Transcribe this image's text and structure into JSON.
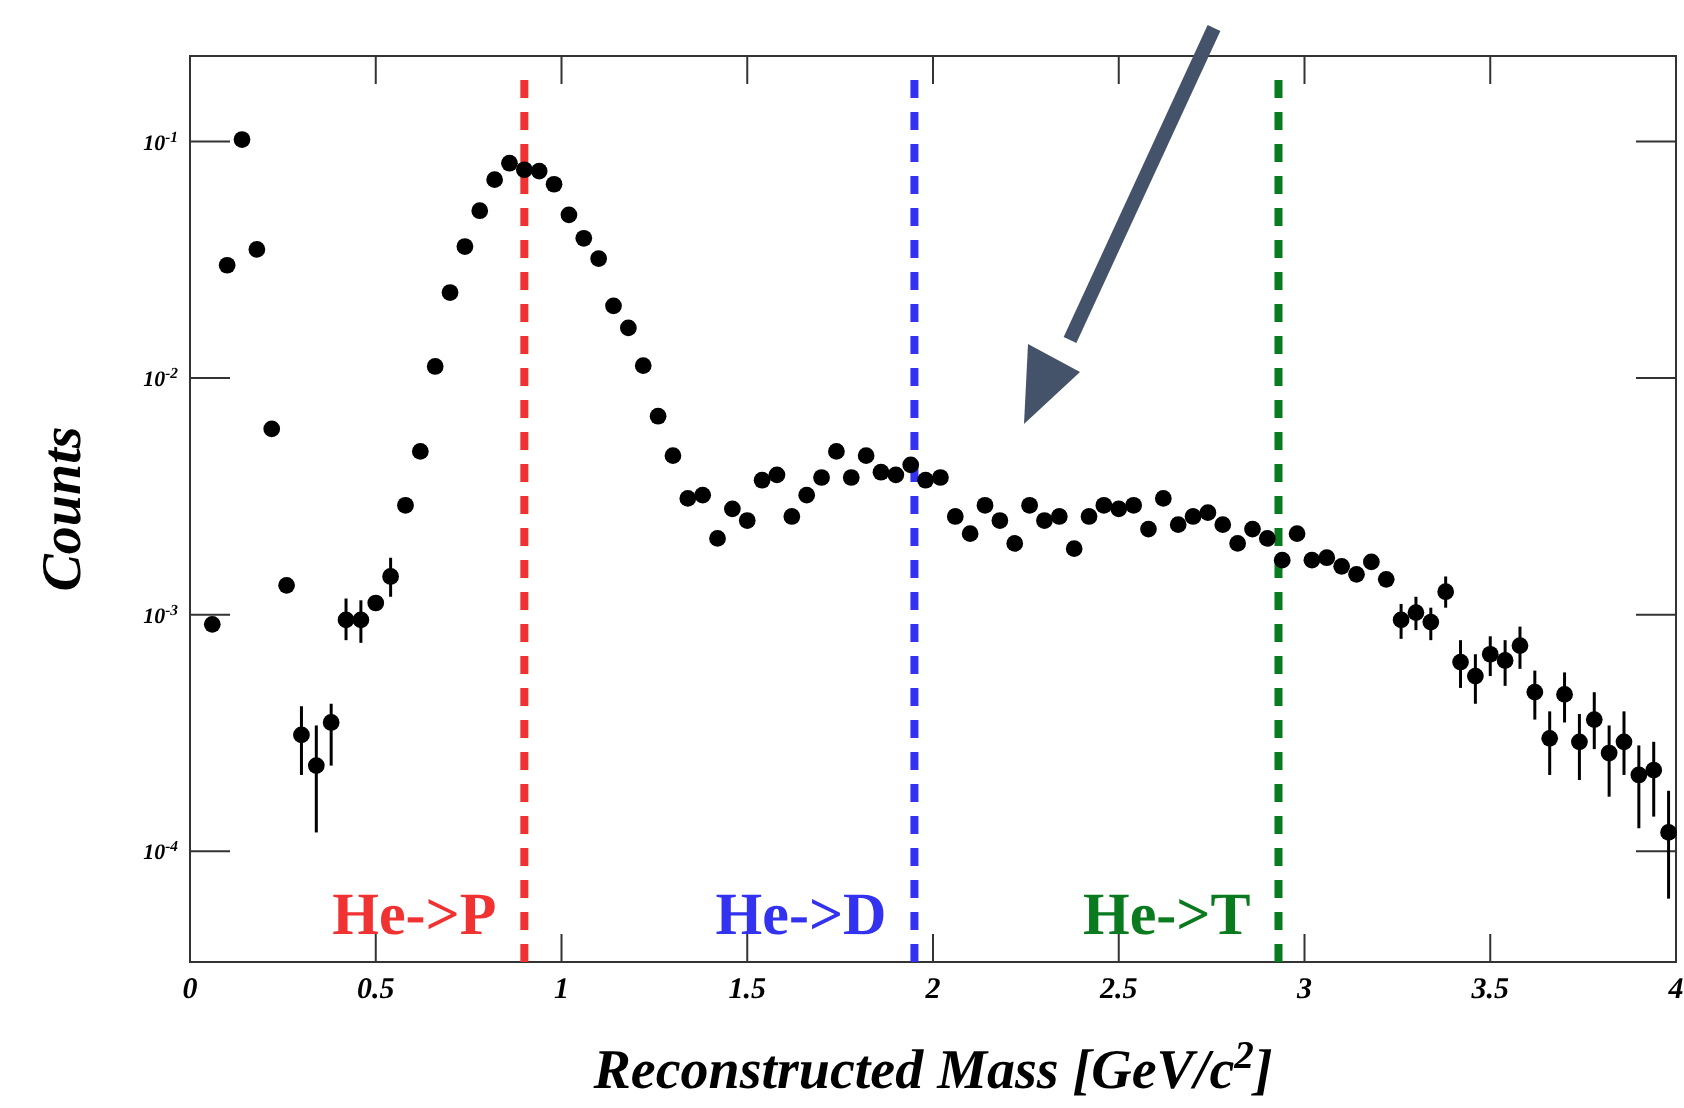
{
  "chart_data": {
    "type": "scatter",
    "xlabel": "Reconstructed Mass [GeV/c$^{2}$]",
    "ylabel": "Counts",
    "log": "y",
    "marker": "circle",
    "grid": false,
    "xlim": [
      0,
      4
    ],
    "xticks": [
      0,
      0.5,
      1,
      1.5,
      2,
      2.5,
      3,
      3.5,
      4
    ],
    "ylim": [
      3.4e-05,
      0.23
    ],
    "yticks": [
      {
        "value": 0.0001,
        "label": "10$^{-4}$"
      },
      {
        "value": 0.001,
        "label": "10$^{-3}$"
      },
      {
        "value": 0.01,
        "label": "10$^{-2}$"
      },
      {
        "value": 0.1,
        "label": "10$^{-1}$"
      }
    ],
    "ref_lines": [
      {
        "axis": "x",
        "value": 0.9,
        "label": "He->P",
        "color": "#f03232",
        "line_style": "dashed"
      },
      {
        "axis": "x",
        "value": 1.95,
        "label": "He->D",
        "color": "#3232f0",
        "line_style": "dashed"
      },
      {
        "axis": "x",
        "value": 2.93,
        "label": "He->T",
        "color": "#0a7a1e",
        "line_style": "dashed"
      }
    ],
    "series": [
      {
        "color": "#000000",
        "x": [
          0.06,
          0.1,
          0.14,
          0.18,
          0.22,
          0.26,
          0.3,
          0.34,
          0.38,
          0.42,
          0.46,
          0.5,
          0.54,
          0.58,
          0.62,
          0.66,
          0.7,
          0.74,
          0.78,
          0.82,
          0.86,
          0.9,
          0.94,
          0.98,
          1.02,
          1.06,
          1.1,
          1.14,
          1.18,
          1.22,
          1.26,
          1.3,
          1.34,
          1.38,
          1.42,
          1.46,
          1.5,
          1.54,
          1.58,
          1.62,
          1.66,
          1.7,
          1.74,
          1.78,
          1.82,
          1.86,
          1.9,
          1.94,
          1.98,
          2.02,
          2.06,
          2.1,
          2.14,
          2.18,
          2.22,
          2.26,
          2.3,
          2.34,
          2.38,
          2.42,
          2.46,
          2.5,
          2.54,
          2.58,
          2.62,
          2.66,
          2.7,
          2.74,
          2.78,
          2.82,
          2.86,
          2.9,
          2.94,
          2.98,
          3.02,
          3.06,
          3.1,
          3.14,
          3.18,
          3.22,
          3.26,
          3.3,
          3.34,
          3.38,
          3.42,
          3.46,
          3.5,
          3.54,
          3.58,
          3.62,
          3.66,
          3.7,
          3.74,
          3.78,
          3.82,
          3.86,
          3.9,
          3.94,
          3.98
        ],
        "values": [
          0.00091,
          0.03,
          0.102,
          0.035,
          0.0061,
          0.00133,
          0.00031,
          0.00023,
          0.00035,
          0.00095,
          0.00095,
          0.00112,
          0.00145,
          0.0029,
          0.0049,
          0.0112,
          0.023,
          0.036,
          0.051,
          0.069,
          0.081,
          0.076,
          0.075,
          0.066,
          0.049,
          0.039,
          0.032,
          0.0202,
          0.0163,
          0.0113,
          0.0069,
          0.0047,
          0.0031,
          0.0032,
          0.0021,
          0.0028,
          0.0025,
          0.0037,
          0.0039,
          0.0026,
          0.0032,
          0.0038,
          0.0049,
          0.0038,
          0.0047,
          0.004,
          0.0039,
          0.0043,
          0.0037,
          0.0038,
          0.0026,
          0.0022,
          0.0029,
          0.0025,
          0.002,
          0.0029,
          0.0025,
          0.0026,
          0.0019,
          0.0026,
          0.0029,
          0.0028,
          0.0029,
          0.0023,
          0.0031,
          0.0024,
          0.0026,
          0.0027,
          0.0024,
          0.002,
          0.0023,
          0.0021,
          0.0017,
          0.0022,
          0.0017,
          0.00174,
          0.0016,
          0.00148,
          0.00167,
          0.00141,
          0.00095,
          0.00102,
          0.00093,
          0.00125,
          0.00063,
          0.00055,
          0.00068,
          0.00064,
          0.00074,
          0.00047,
          0.0003,
          0.00046,
          0.00029,
          0.00036,
          0.00026,
          0.00029,
          0.00021,
          0.00022,
          0.00012
        ],
        "errors": [
          null,
          null,
          null,
          null,
          null,
          null,
          [
            0.00021,
            0.00041
          ],
          [
            0.00012,
            0.00034
          ],
          [
            0.00023,
            0.00042
          ],
          [
            0.00078,
            0.00117
          ],
          [
            0.00076,
            0.00115
          ],
          null,
          [
            0.00119,
            0.00174
          ],
          null,
          null,
          null,
          null,
          null,
          null,
          null,
          null,
          null,
          null,
          null,
          null,
          null,
          null,
          null,
          null,
          null,
          null,
          null,
          null,
          null,
          null,
          null,
          null,
          null,
          null,
          null,
          null,
          null,
          null,
          null,
          null,
          null,
          null,
          null,
          null,
          null,
          null,
          null,
          null,
          null,
          null,
          null,
          null,
          null,
          null,
          null,
          null,
          null,
          null,
          null,
          null,
          null,
          null,
          null,
          null,
          null,
          null,
          null,
          null,
          null,
          null,
          null,
          null,
          null,
          null,
          null,
          [
            0.00079,
            0.00111
          ],
          [
            0.00086,
            0.00119
          ],
          [
            0.00078,
            0.00107
          ],
          [
            0.00107,
            0.00145
          ],
          [
            0.00049,
            0.00078
          ],
          [
            0.00042,
            0.00068
          ],
          [
            0.00055,
            0.00081
          ],
          [
            0.0005,
            0.00078
          ],
          [
            0.00059,
            0.00089
          ],
          [
            0.00036,
            0.00058
          ],
          [
            0.00021,
            0.00039
          ],
          [
            0.00035,
            0.00057
          ],
          [
            0.0002,
            0.00038
          ],
          [
            0.00027,
            0.00047
          ],
          [
            0.00017,
            0.00034
          ],
          [
            0.00021,
            0.00039
          ],
          [
            0.000125,
            0.00028
          ],
          [
            0.00014,
            0.00029
          ],
          [
            6.3e-05,
            0.00018
          ]
        ]
      }
    ]
  }
}
